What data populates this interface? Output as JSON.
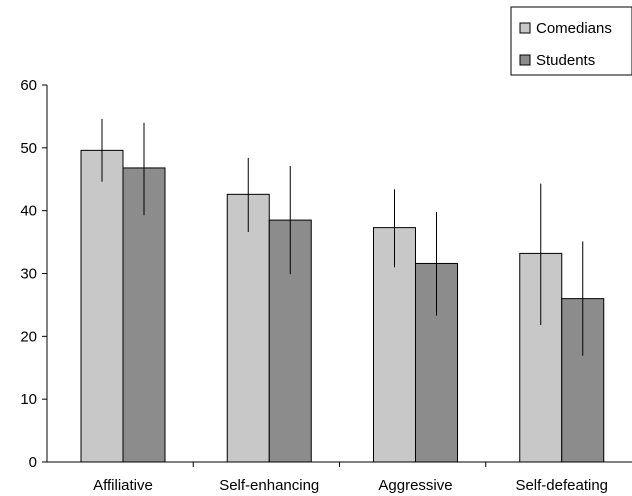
{
  "chart_data": {
    "type": "bar",
    "categories": [
      "Affiliative",
      "Self-enhancing",
      "Aggressive",
      "Self-defeating"
    ],
    "series": [
      {
        "name": "Comedians",
        "values": [
          49.6,
          42.6,
          37.3,
          33.2
        ],
        "error_low": [
          44.6,
          36.6,
          31.0,
          21.8
        ],
        "error_high": [
          54.6,
          48.4,
          43.4,
          44.3
        ],
        "color": "#c8c8c8"
      },
      {
        "name": "Students",
        "values": [
          46.8,
          38.5,
          31.6,
          26.0
        ],
        "error_low": [
          39.3,
          29.9,
          23.3,
          16.9
        ],
        "error_high": [
          54.0,
          47.1,
          39.8,
          35.1
        ],
        "color": "#8c8c8c"
      }
    ],
    "yticks": [
      "0",
      "10",
      "20",
      "30",
      "40",
      "50",
      "60"
    ],
    "ylim": [
      0,
      60
    ],
    "grid": false,
    "legend": "top-right",
    "title": "",
    "xlabel": "",
    "ylabel": ""
  }
}
